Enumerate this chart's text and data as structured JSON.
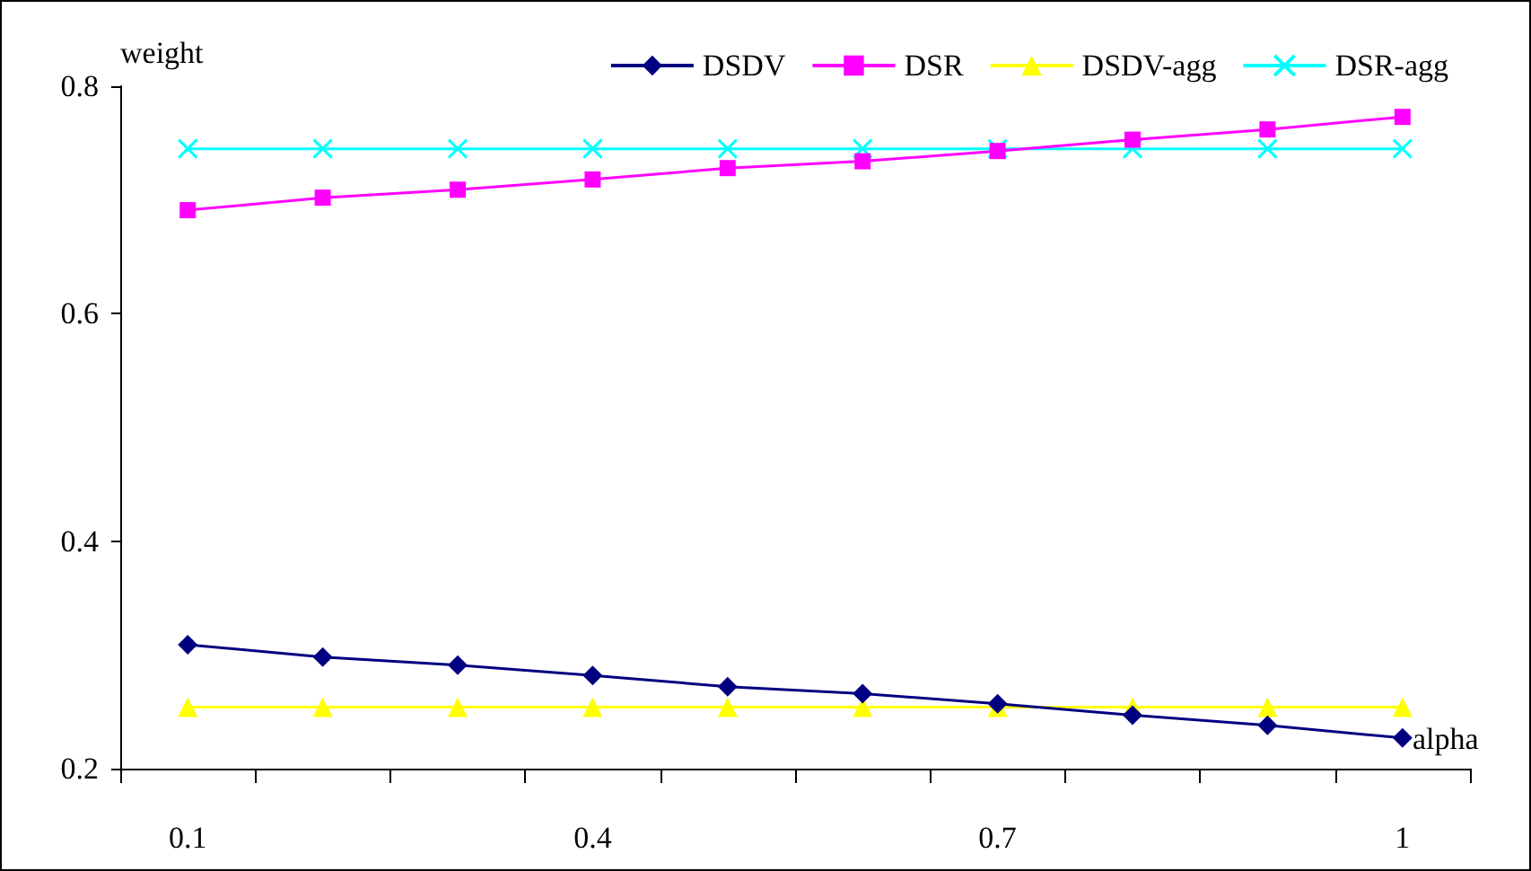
{
  "chart_data": {
    "type": "line",
    "xlabel": "alpha",
    "ylabel": "weight",
    "categories": [
      "0.1",
      null,
      null,
      "0.4",
      null,
      null,
      "0.7",
      null,
      null,
      "1"
    ],
    "series": [
      {
        "name": "DSDV",
        "color": "#000080",
        "marker": "diamond",
        "values": [
          0.309,
          0.298,
          0.291,
          0.282,
          0.272,
          0.266,
          0.257,
          0.247,
          0.238,
          0.227
        ]
      },
      {
        "name": "DSR",
        "color": "#ff00ff",
        "marker": "square",
        "values": [
          0.691,
          0.702,
          0.709,
          0.718,
          0.728,
          0.734,
          0.743,
          0.753,
          0.762,
          0.773
        ]
      },
      {
        "name": "DSDV-agg",
        "color": "#ffff00",
        "marker": "triangle",
        "values": [
          0.254,
          0.254,
          0.254,
          0.254,
          0.254,
          0.254,
          0.254,
          0.254,
          0.254,
          0.254
        ]
      },
      {
        "name": "DSR-agg",
        "color": "#00ffff",
        "marker": "cross",
        "values": [
          0.745,
          0.745,
          0.745,
          0.745,
          0.745,
          0.745,
          0.745,
          0.745,
          0.745,
          0.745
        ]
      }
    ],
    "ylim": [
      0.2,
      0.8
    ],
    "yticks": [
      0.2,
      0.4,
      0.6,
      0.8
    ],
    "grid": false,
    "legend": "top right"
  }
}
